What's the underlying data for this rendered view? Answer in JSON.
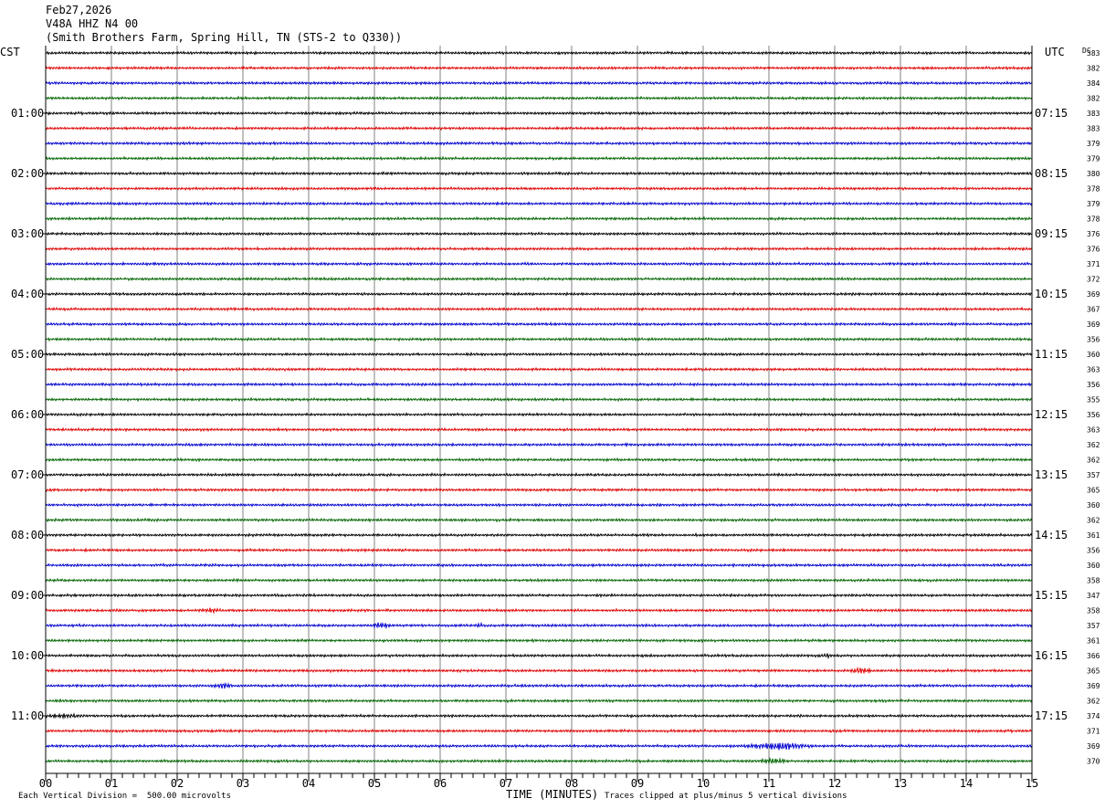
{
  "header": {
    "date": "Feb27,2026",
    "station": "V48A HHZ N4 00",
    "location": "(Smith Brothers Farm, Spring Hill, TN (STS-2 to Q330))"
  },
  "labels": {
    "left_tz": "CST",
    "right_tz": "UTC",
    "dc_header": "DC",
    "xaxis": "TIME (MINUTES)"
  },
  "footer": {
    "scale": "Each Vertical Division =  500.00 microvolts",
    "clip": "Traces clipped at plus/minus 5 vertical divisions"
  },
  "chart_data": {
    "type": "line",
    "xlabel": "TIME (MINUTES)",
    "xlim": [
      0,
      15
    ],
    "x_ticks": [
      "00",
      "01",
      "02",
      "03",
      "04",
      "05",
      "06",
      "07",
      "08",
      "09",
      "10",
      "11",
      "12",
      "13",
      "14",
      "15"
    ],
    "trace_colors": [
      "#000000",
      "#e00000",
      "#0000d0",
      "#006400"
    ],
    "left_time_labels": [
      "01:00",
      "02:00",
      "03:00",
      "04:00",
      "05:00",
      "06:00",
      "07:00",
      "08:00",
      "09:00",
      "10:00",
      "11:00"
    ],
    "right_time_labels": [
      "07:15",
      "08:15",
      "09:15",
      "10:15",
      "11:15",
      "12:15",
      "13:15",
      "14:15",
      "15:15",
      "16:15",
      "17:15"
    ],
    "dc_values": [
      383,
      382,
      384,
      382,
      383,
      383,
      379,
      379,
      380,
      378,
      379,
      378,
      376,
      376,
      371,
      372,
      369,
      367,
      369,
      356,
      360,
      363,
      356,
      355,
      356,
      363,
      362,
      362,
      357,
      365,
      360,
      362,
      361,
      356,
      360,
      358,
      347,
      358,
      357,
      361,
      366,
      365,
      369,
      362,
      374,
      371,
      369,
      370
    ],
    "events": [
      {
        "row": 37,
        "x_min": 2.3,
        "x_max": 2.7,
        "amp": 1.8
      },
      {
        "row": 38,
        "x_min": 4.9,
        "x_max": 5.3,
        "amp": 2.2
      },
      {
        "row": 38,
        "x_min": 6.5,
        "x_max": 6.7,
        "amp": 1.3
      },
      {
        "row": 40,
        "x_min": 11.8,
        "x_max": 12.0,
        "amp": 1.3
      },
      {
        "row": 41,
        "x_min": 12.2,
        "x_max": 12.6,
        "amp": 2.6
      },
      {
        "row": 42,
        "x_min": 2.5,
        "x_max": 2.9,
        "amp": 2.0
      },
      {
        "row": 44,
        "x_min": 0.0,
        "x_max": 0.6,
        "amp": 1.8
      },
      {
        "row": 46,
        "x_min": 10.6,
        "x_max": 11.7,
        "amp": 3.5
      },
      {
        "row": 47,
        "x_min": 10.8,
        "x_max": 11.3,
        "amp": 2.5
      }
    ]
  }
}
